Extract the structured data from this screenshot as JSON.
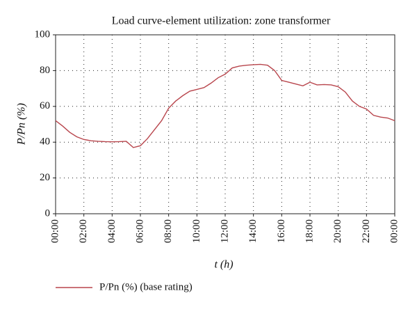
{
  "chart_data": {
    "type": "line",
    "title": "Load curve-element utilization: zone transformer",
    "xlabel": "t (h)",
    "ylabel": "P/Pn (%)",
    "x": [
      0,
      0.5,
      1,
      1.5,
      2,
      2.5,
      3,
      3.5,
      4,
      4.5,
      5,
      5.5,
      6,
      6.5,
      7,
      7.5,
      8,
      8.5,
      9,
      9.5,
      10,
      10.5,
      11,
      11.5,
      12,
      12.5,
      13,
      13.5,
      14,
      14.5,
      15,
      15.5,
      16,
      16.5,
      17,
      17.5,
      18,
      18.5,
      19,
      19.5,
      20,
      20.5,
      21,
      21.5,
      22,
      22.5,
      23,
      23.5,
      24
    ],
    "series": [
      {
        "name": "P/Pn (%) (base rating)",
        "color": "#b8454c",
        "values": [
          52,
          49,
          45.5,
          43,
          41.5,
          40.8,
          40.5,
          40.3,
          40.2,
          40.3,
          40.5,
          37,
          38,
          42,
          47,
          52,
          59,
          63,
          66,
          68.5,
          69.5,
          70.5,
          73,
          76,
          78,
          81.5,
          82.5,
          83,
          83.3,
          83.5,
          83,
          80,
          74.5,
          73.5,
          72.5,
          71.5,
          73.5,
          72,
          72.2,
          72,
          71,
          68,
          63,
          60,
          58.5,
          55,
          54,
          53.5,
          52
        ]
      }
    ],
    "xlim": [
      0,
      24
    ],
    "xticks": [
      {
        "value": 0,
        "label": "00:00"
      },
      {
        "value": 2,
        "label": "02:00"
      },
      {
        "value": 4,
        "label": "04:00"
      },
      {
        "value": 6,
        "label": "06:00"
      },
      {
        "value": 8,
        "label": "08:00"
      },
      {
        "value": 10,
        "label": "10:00"
      },
      {
        "value": 12,
        "label": "12:00"
      },
      {
        "value": 14,
        "label": "14:00"
      },
      {
        "value": 16,
        "label": "16:00"
      },
      {
        "value": 18,
        "label": "18:00"
      },
      {
        "value": 20,
        "label": "20:00"
      },
      {
        "value": 22,
        "label": "22:00"
      },
      {
        "value": 24,
        "label": "00:00"
      }
    ],
    "ylim": [
      0,
      100
    ],
    "yticks": [
      0,
      20,
      40,
      60,
      80,
      100
    ],
    "grid": true,
    "legend": "bottom-left"
  }
}
